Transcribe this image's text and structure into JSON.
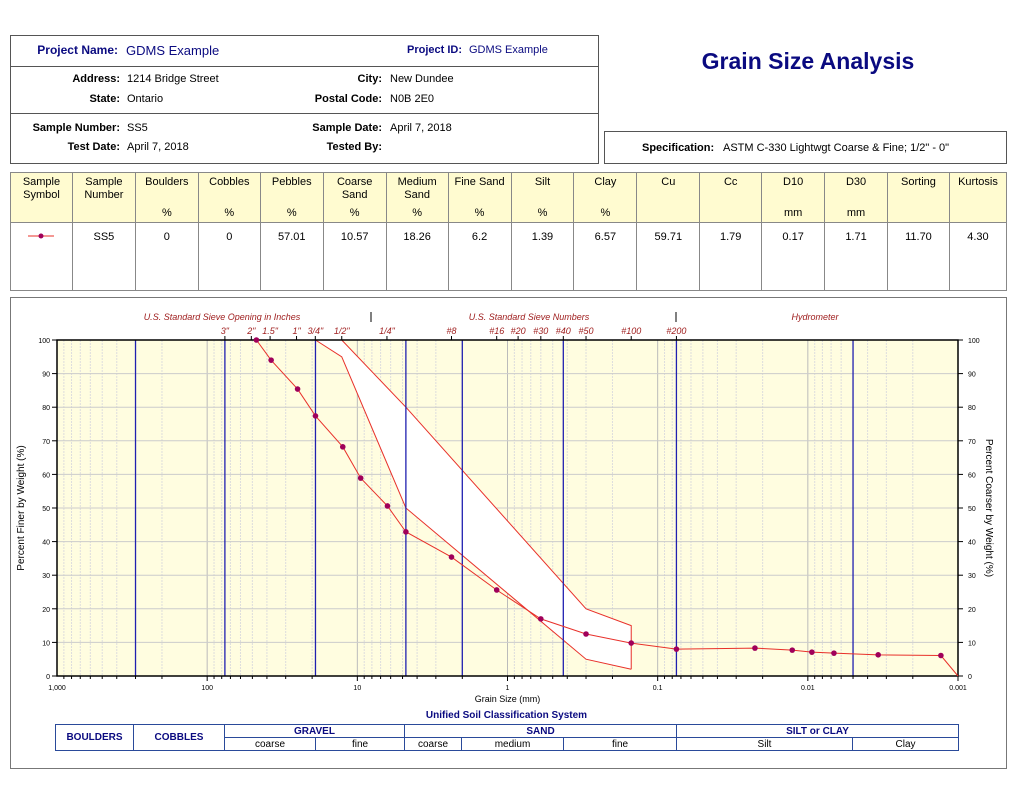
{
  "header": {
    "project_name_label": "Project Name:",
    "project_name": "GDMS Example",
    "project_id_label": "Project ID:",
    "project_id": "GDMS Example",
    "address_label": "Address:",
    "address": "1214 Bridge Street",
    "city_label": "City:",
    "city": "New Dundee",
    "state_label": "State:",
    "state": "Ontario",
    "postal_label": "Postal Code:",
    "postal": "N0B 2E0",
    "sample_number_label": "Sample Number:",
    "sample_number": "SS5",
    "sample_date_label": "Sample Date:",
    "sample_date": "April 7, 2018",
    "test_date_label": "Test Date:",
    "test_date": "April 7, 2018",
    "tested_by_label": "Tested By:",
    "tested_by": ""
  },
  "title": "Grain Size Analysis",
  "spec": {
    "label": "Specification:",
    "value": "ASTM C-330 Lightwgt Coarse & Fine; 1/2\" - 0\""
  },
  "summary": {
    "columns": [
      {
        "l1": "Sample",
        "l2": "Symbol",
        "unit": ""
      },
      {
        "l1": "Sample",
        "l2": "Number",
        "unit": ""
      },
      {
        "l1": "Boulders",
        "l2": "",
        "unit": "%"
      },
      {
        "l1": "Cobbles",
        "l2": "",
        "unit": "%"
      },
      {
        "l1": "Pebbles",
        "l2": "",
        "unit": "%"
      },
      {
        "l1": "Coarse",
        "l2": "Sand",
        "unit": "%"
      },
      {
        "l1": "Medium",
        "l2": "Sand",
        "unit": "%"
      },
      {
        "l1": "Fine Sand",
        "l2": "",
        "unit": "%"
      },
      {
        "l1": "Silt",
        "l2": "",
        "unit": "%"
      },
      {
        "l1": "Clay",
        "l2": "",
        "unit": "%"
      },
      {
        "l1": "Cu",
        "l2": "",
        "unit": ""
      },
      {
        "l1": "Cc",
        "l2": "",
        "unit": ""
      },
      {
        "l1": "D10",
        "l2": "",
        "unit": "mm"
      },
      {
        "l1": "D30",
        "l2": "",
        "unit": "mm"
      },
      {
        "l1": "Sorting",
        "l2": "",
        "unit": ""
      },
      {
        "l1": "Kurtosis",
        "l2": "",
        "unit": ""
      }
    ],
    "row": [
      "",
      "SS5",
      "0",
      "0",
      "57.01",
      "10.57",
      "18.26",
      "6.2",
      "1.39",
      "6.57",
      "59.71",
      "1.79",
      "0.17",
      "1.71",
      "11.70",
      "4.30"
    ]
  },
  "colors": {
    "series": "#e8302a",
    "marker": "#a0005a",
    "boundary": "#2020b0",
    "plot_bg": "#fffde0",
    "band": "#ffffff",
    "title": "#0a0a80",
    "sieve_labels": "#a02020"
  },
  "chart_data": {
    "type": "line",
    "xscale": "log",
    "xlim": [
      1000,
      0.001
    ],
    "ylim": [
      0,
      100
    ],
    "xlabel": "Grain Size (mm)",
    "ylabel": "Percent Finer by Weight (%)",
    "ylabel_right": "Percent Coarser by Weight (%)",
    "x_ticks": [
      "1,000",
      "100",
      "10",
      "1",
      "0.1",
      "0.01",
      "0.001"
    ],
    "y_ticks": [
      "0",
      "10",
      "20",
      "30",
      "40",
      "50",
      "60",
      "70",
      "80",
      "90",
      "100"
    ],
    "y_ticks_right": [
      "100",
      "90",
      "80",
      "70",
      "60",
      "50",
      "40",
      "30",
      "20",
      "10",
      "0"
    ],
    "grid": true,
    "top_sections": [
      {
        "label": "U.S. Standard Sieve Opening in Inches"
      },
      {
        "label": "U.S. Standard Sieve Numbers"
      },
      {
        "label": "Hydrometer"
      }
    ],
    "sieves": [
      {
        "label": "3\"",
        "mm": 76.2
      },
      {
        "label": "2\"",
        "mm": 50.8
      },
      {
        "label": "1.5\"",
        "mm": 38.1
      },
      {
        "label": "1\"",
        "mm": 25.4
      },
      {
        "label": "3/4\"",
        "mm": 19.05
      },
      {
        "label": "1/2\"",
        "mm": 12.7
      },
      {
        "label": "1/4\"",
        "mm": 6.35
      },
      {
        "label": "#8",
        "mm": 2.36
      },
      {
        "label": "#16",
        "mm": 1.18
      },
      {
        "label": "#20",
        "mm": 0.85
      },
      {
        "label": "#30",
        "mm": 0.6
      },
      {
        "label": "#40",
        "mm": 0.425
      },
      {
        "label": "#50",
        "mm": 0.3
      },
      {
        "label": "#100",
        "mm": 0.15
      },
      {
        "label": "#200",
        "mm": 0.075
      }
    ],
    "section_dividers_mm": [
      4.75,
      0.075
    ],
    "classification_boundaries_mm": [
      300,
      76.2,
      19,
      4.75,
      2.0,
      0.425,
      0.075,
      0.005
    ],
    "series": [
      {
        "name": "SS5",
        "x": [
          47,
          37.5,
          25,
          19,
          12.5,
          9.5,
          6.3,
          4.75,
          2.36,
          1.18,
          0.6,
          0.3,
          0.15,
          0.075,
          0.0225,
          0.0127,
          0.0094,
          0.0067,
          0.0034,
          0.0013,
          0.001
        ],
        "y": [
          100,
          94,
          85.4,
          77.4,
          68.2,
          58.9,
          50.6,
          42.9,
          35.4,
          25.6,
          17,
          12.5,
          9.8,
          8.0,
          8.3,
          7.7,
          7.1,
          6.8,
          6.3,
          6.1,
          0
        ]
      }
    ],
    "spec_band": {
      "x": [
        19,
        12.7,
        4.75,
        0.3,
        0.15
      ],
      "upper": [
        100,
        100,
        80,
        20,
        15
      ],
      "lower": [
        100,
        95,
        50,
        5,
        2
      ]
    }
  },
  "uscs": {
    "title": "Unified Soil Classification System",
    "boulders": "BOULDERS",
    "cobbles": "COBBLES",
    "gravel": "GRAVEL",
    "sand": "SAND",
    "silt_clay": "SILT or CLAY",
    "gravel_coarse": "coarse",
    "gravel_fine": "fine",
    "sand_coarse": "coarse",
    "sand_medium": "medium",
    "sand_fine": "fine",
    "silt": "Silt",
    "clay": "Clay"
  }
}
